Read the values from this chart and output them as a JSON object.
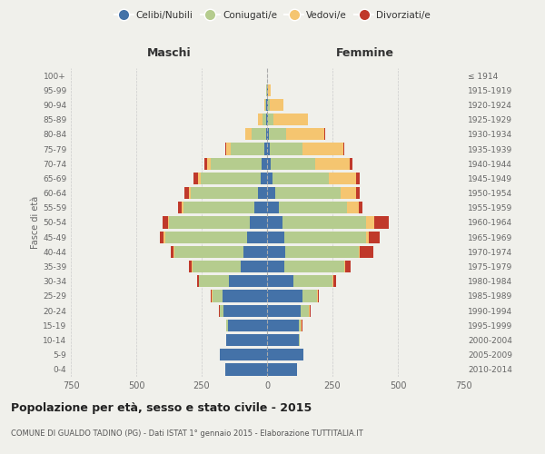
{
  "age_groups": [
    "0-4",
    "5-9",
    "10-14",
    "15-19",
    "20-24",
    "25-29",
    "30-34",
    "35-39",
    "40-44",
    "45-49",
    "50-54",
    "55-59",
    "60-64",
    "65-69",
    "70-74",
    "75-79",
    "80-84",
    "85-89",
    "90-94",
    "95-99",
    "100+"
  ],
  "birth_years": [
    "2010-2014",
    "2005-2009",
    "2000-2004",
    "1995-1999",
    "1990-1994",
    "1985-1989",
    "1980-1984",
    "1975-1979",
    "1970-1974",
    "1965-1969",
    "1960-1964",
    "1955-1959",
    "1950-1954",
    "1945-1949",
    "1940-1944",
    "1935-1939",
    "1930-1934",
    "1925-1929",
    "1920-1924",
    "1915-1919",
    "≤ 1914"
  ],
  "maschi": {
    "celibi": [
      160,
      180,
      155,
      150,
      165,
      170,
      145,
      100,
      90,
      75,
      65,
      50,
      35,
      25,
      20,
      10,
      5,
      3,
      2,
      0,
      0
    ],
    "coniugati": [
      0,
      0,
      0,
      5,
      15,
      40,
      115,
      185,
      265,
      315,
      310,
      270,
      255,
      230,
      195,
      130,
      55,
      15,
      5,
      2,
      0
    ],
    "vedove": [
      0,
      0,
      0,
      0,
      2,
      2,
      2,
      2,
      3,
      5,
      5,
      5,
      10,
      10,
      15,
      15,
      25,
      15,
      5,
      2,
      0
    ],
    "divorziate": [
      0,
      0,
      0,
      0,
      3,
      5,
      5,
      10,
      10,
      15,
      20,
      15,
      15,
      15,
      10,
      5,
      0,
      0,
      0,
      0,
      0
    ]
  },
  "femmine": {
    "nubili": [
      115,
      140,
      120,
      120,
      130,
      135,
      100,
      65,
      70,
      65,
      60,
      45,
      30,
      20,
      15,
      10,
      8,
      5,
      3,
      2,
      0
    ],
    "coniugate": [
      0,
      0,
      5,
      10,
      30,
      55,
      150,
      230,
      280,
      315,
      320,
      260,
      250,
      215,
      170,
      125,
      65,
      20,
      8,
      2,
      0
    ],
    "vedove": [
      0,
      0,
      0,
      2,
      2,
      3,
      5,
      5,
      5,
      10,
      30,
      45,
      60,
      105,
      130,
      155,
      145,
      130,
      50,
      10,
      0
    ],
    "divorziate": [
      0,
      0,
      0,
      2,
      3,
      5,
      10,
      20,
      50,
      40,
      55,
      15,
      15,
      15,
      10,
      5,
      5,
      0,
      0,
      0,
      0
    ]
  },
  "colors": {
    "celibi": "#4472a8",
    "coniugati": "#b5cc8e",
    "vedove": "#f5c570",
    "divorziate": "#c0392b"
  },
  "title": "Popolazione per età, sesso e stato civile - 2015",
  "subtitle": "COMUNE DI GUALDO TADINO (PG) - Dati ISTAT 1° gennaio 2015 - Elaborazione TUTTITALIA.IT",
  "xlabel_left": "Maschi",
  "xlabel_right": "Femmine",
  "ylabel_left": "Fasce di età",
  "xlim": 750,
  "background_color": "#f0f0eb",
  "grid_color": "#cccccc"
}
